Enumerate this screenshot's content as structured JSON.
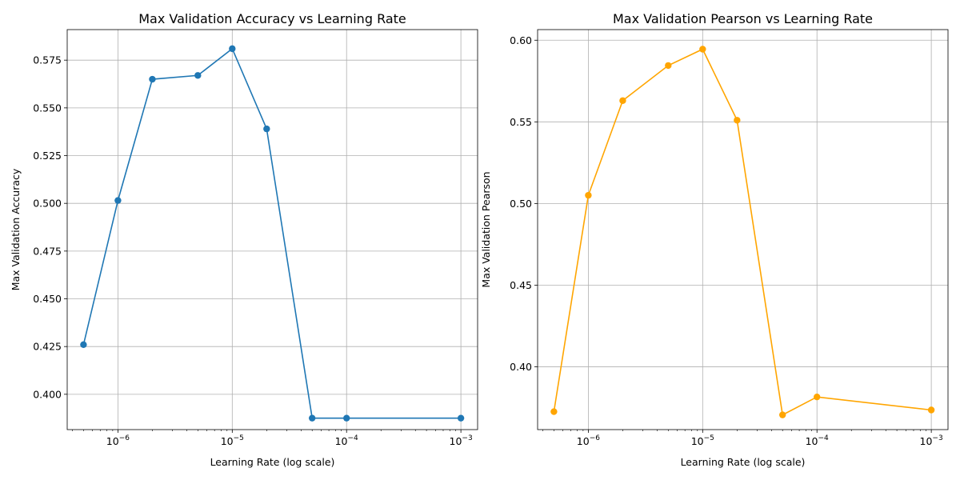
{
  "chart_data": [
    {
      "type": "line",
      "title": "Max Validation Accuracy vs Learning Rate",
      "xlabel": "Learning Rate (log scale)",
      "ylabel": "Max Validation Accuracy",
      "x_scale": "log",
      "xlim": [
        3.6e-07,
        0.0014
      ],
      "ylim": [
        0.3815,
        0.591
      ],
      "grid": true,
      "x_ticks": [
        {
          "value": 1e-06,
          "base": "10",
          "exp": "−6"
        },
        {
          "value": 1e-05,
          "base": "10",
          "exp": "−5"
        },
        {
          "value": 0.0001,
          "base": "10",
          "exp": "−4"
        },
        {
          "value": 0.001,
          "base": "10",
          "exp": "−3"
        }
      ],
      "y_ticks": [
        0.4,
        0.425,
        0.45,
        0.475,
        0.5,
        0.525,
        0.55,
        0.575
      ],
      "y_tick_labels": [
        "0.400",
        "0.425",
        "0.450",
        "0.475",
        "0.500",
        "0.525",
        "0.550",
        "0.575"
      ],
      "series": [
        {
          "color": "#1f77b4",
          "x": [
            5e-07,
            1e-06,
            2e-06,
            5e-06,
            1e-05,
            2e-05,
            5e-05,
            0.0001,
            0.001
          ],
          "y": [
            0.426,
            0.5015,
            0.565,
            0.567,
            0.581,
            0.539,
            0.3875,
            0.3875,
            0.3875
          ]
        }
      ]
    },
    {
      "type": "line",
      "title": "Max Validation Pearson vs Learning Rate",
      "xlabel": "Learning Rate (log scale)",
      "ylabel": "Max Validation Pearson",
      "x_scale": "log",
      "xlim": [
        3.6e-07,
        0.0014
      ],
      "ylim": [
        0.3615,
        0.6065
      ],
      "grid": true,
      "x_ticks": [
        {
          "value": 1e-06,
          "base": "10",
          "exp": "−6"
        },
        {
          "value": 1e-05,
          "base": "10",
          "exp": "−5"
        },
        {
          "value": 0.0001,
          "base": "10",
          "exp": "−4"
        },
        {
          "value": 0.001,
          "base": "10",
          "exp": "−3"
        }
      ],
      "y_ticks": [
        0.4,
        0.45,
        0.5,
        0.55,
        0.6
      ],
      "y_tick_labels": [
        "0.40",
        "0.45",
        "0.50",
        "0.55",
        "0.60"
      ],
      "series": [
        {
          "color": "#ffa500",
          "x": [
            5e-07,
            1e-06,
            2e-06,
            5e-06,
            1e-05,
            2e-05,
            5e-05,
            0.0001,
            0.001
          ],
          "y": [
            0.3725,
            0.505,
            0.563,
            0.5845,
            0.5945,
            0.551,
            0.3705,
            0.3815,
            0.3735
          ]
        }
      ]
    }
  ]
}
